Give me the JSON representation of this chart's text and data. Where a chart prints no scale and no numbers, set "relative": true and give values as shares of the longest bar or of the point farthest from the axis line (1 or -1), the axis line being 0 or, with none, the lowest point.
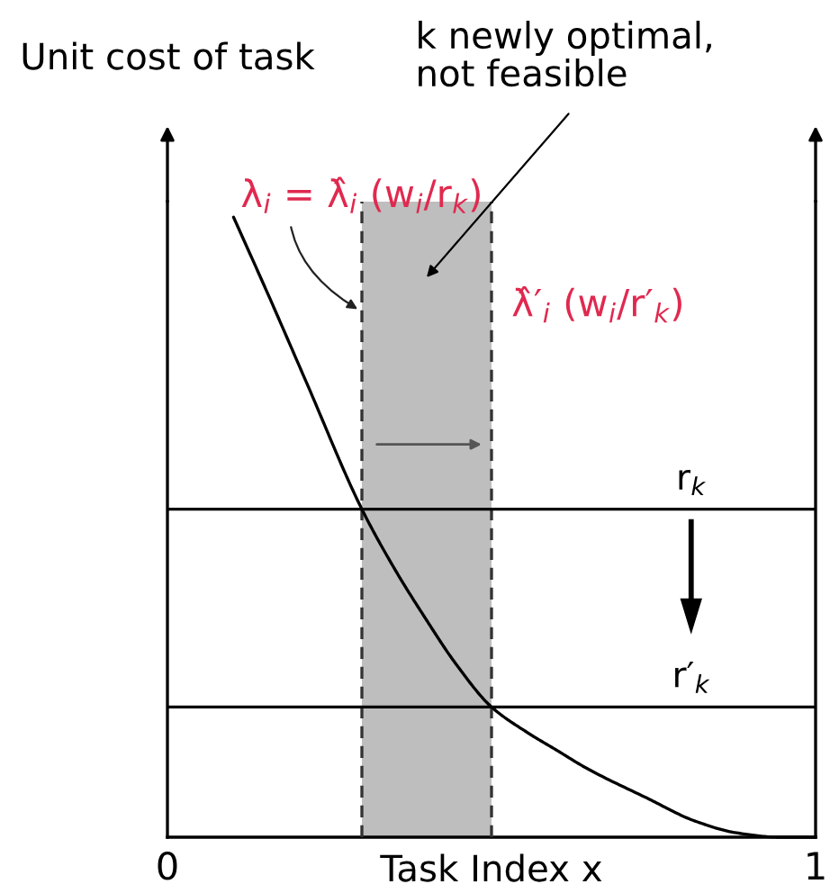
{
  "chart_data": {
    "type": "line",
    "relative": true,
    "xlabel": "Task Index x",
    "ylabel": "Unit cost of task",
    "x": [
      0.102,
      0.158,
      0.213,
      0.3,
      0.352,
      0.398,
      0.444,
      0.5,
      0.555,
      0.601,
      0.647,
      0.74,
      0.814,
      0.878,
      0.943,
      1.0
    ],
    "series": [
      {
        "color": "#000000",
        "values": [
          1.0,
          0.869,
          0.737,
          0.529,
          0.43,
          0.353,
          0.281,
          0.21,
          0.169,
          0.14,
          0.111,
          0.063,
          0.026,
          0.007,
          0.0,
          0.0
        ]
      }
    ],
    "xlim": [
      0,
      1
    ],
    "xticks": [
      0,
      1
    ],
    "tick_labels": "x",
    "bands": [
      {
        "axis": "x",
        "from": 0.3,
        "to": 0.5,
        "color": "#bebebe"
      }
    ],
    "ref_lines": [
      {
        "axis": "x",
        "value": 0.3,
        "label": "λ$_{i}$ = λ̂$_{i}$ (w$_{i}$/r$_{k}$)",
        "color": "#333333",
        "line_style": "dashed"
      },
      {
        "axis": "x",
        "value": 0.5,
        "label": "λ̂′$_{i}$ (w$_{i}$/r′$_{k}$)",
        "color": "#333333",
        "line_style": "dashed"
      },
      {
        "axis": "y",
        "value": 0.529,
        "label": "r$_{k}$",
        "color": "#000000"
      },
      {
        "axis": "y",
        "value": 0.21,
        "label": "r′$_{k}$",
        "color": "#000000"
      }
    ],
    "annotations": [
      "k newly optimal,\nnot feasible"
    ]
  }
}
